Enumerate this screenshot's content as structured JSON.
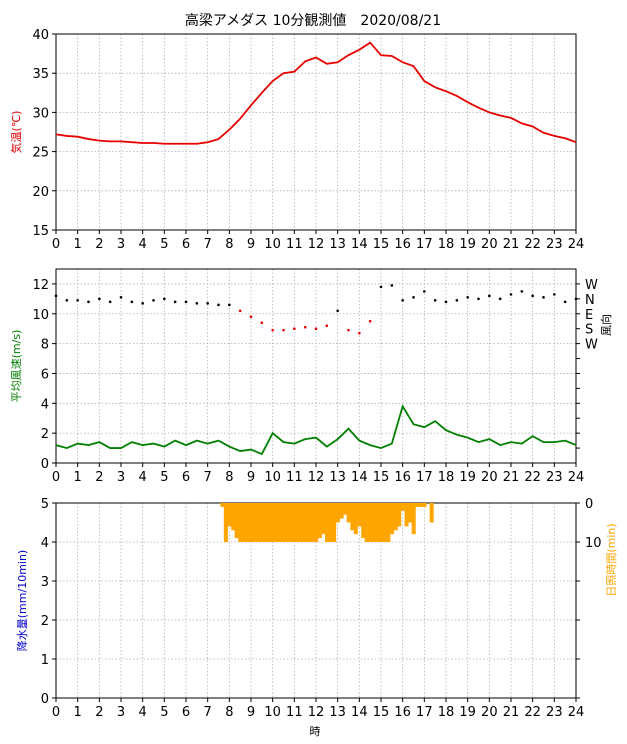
{
  "title": "高梁アメダス 10分観測値　2020/08/21",
  "xlabel": "時",
  "colors": {
    "temperature": "#e60000",
    "wind_speed": "#007f00",
    "wind_dir_normal": "#000000",
    "wind_dir_red": "#e60000",
    "precip_label": "#0000cc",
    "sunshine": "#ffa500",
    "grid": "#b0b0b0"
  },
  "chart_data": [
    {
      "type": "line",
      "name": "temperature-panel",
      "ylabel": "気温(℃)",
      "xlim": [
        0,
        24
      ],
      "ylim": [
        15,
        40
      ],
      "xticks": [
        0,
        1,
        2,
        3,
        4,
        5,
        6,
        7,
        8,
        9,
        10,
        11,
        12,
        13,
        14,
        15,
        16,
        17,
        18,
        19,
        20,
        21,
        22,
        23,
        24
      ],
      "yticks": [
        15,
        20,
        25,
        30,
        35,
        40
      ],
      "grid": true,
      "series": [
        {
          "x": [
            0,
            0.5,
            1,
            1.5,
            2,
            2.5,
            3,
            3.5,
            4,
            4.5,
            5,
            5.5,
            6,
            6.5,
            7,
            7.5,
            8,
            8.5,
            9,
            9.5,
            10,
            10.5,
            11,
            11.5,
            12,
            12.5,
            13,
            13.5,
            14,
            14.5,
            15,
            15.5,
            16,
            16.5,
            17,
            17.5,
            18,
            18.5,
            19,
            19.5,
            20,
            20.5,
            21,
            21.5,
            22,
            22.5,
            23,
            23.5,
            24
          ],
          "values": [
            27.2,
            27.0,
            26.9,
            26.6,
            26.4,
            26.3,
            26.3,
            26.2,
            26.1,
            26.1,
            26.0,
            26.0,
            26.0,
            26.0,
            26.2,
            26.6,
            27.8,
            29.2,
            30.9,
            32.5,
            34.0,
            35.0,
            35.2,
            36.5,
            37.0,
            36.2,
            36.4,
            37.3,
            38.0,
            38.9,
            37.3,
            37.2,
            36.4,
            35.9,
            34.0,
            33.2,
            32.7,
            32.1,
            31.3,
            30.6,
            30.0,
            29.6,
            29.3,
            28.6,
            28.2,
            27.4,
            27.0,
            26.7,
            26.2
          ]
        }
      ]
    },
    {
      "type": "line",
      "name": "wind-panel",
      "ylabel": "平均風速(m/s)",
      "y2label": "風向",
      "xlim": [
        0,
        24
      ],
      "ylim": [
        0,
        13
      ],
      "xticks": [
        0,
        1,
        2,
        3,
        4,
        5,
        6,
        7,
        8,
        9,
        10,
        11,
        12,
        13,
        14,
        15,
        16,
        17,
        18,
        19,
        20,
        21,
        22,
        23,
        24
      ],
      "yticks": [
        0,
        2,
        4,
        6,
        8,
        10,
        12
      ],
      "y2ticks": [
        "W",
        "N",
        "E",
        "S",
        "W"
      ],
      "grid": true,
      "series": [
        {
          "name": "wind-speed",
          "x": [
            0,
            0.5,
            1,
            1.5,
            2,
            2.5,
            3,
            3.5,
            4,
            4.5,
            5,
            5.5,
            6,
            6.5,
            7,
            7.5,
            8,
            8.5,
            9,
            9.5,
            10,
            10.5,
            11,
            11.5,
            12,
            12.5,
            13,
            13.5,
            14,
            14.5,
            15,
            15.5,
            16,
            16.5,
            17,
            17.5,
            18,
            18.5,
            19,
            19.5,
            20,
            20.5,
            21,
            21.5,
            22,
            22.5,
            23,
            23.5,
            24
          ],
          "values": [
            1.2,
            1.0,
            1.3,
            1.2,
            1.4,
            1.0,
            1.0,
            1.4,
            1.2,
            1.3,
            1.1,
            1.5,
            1.2,
            1.5,
            1.3,
            1.5,
            1.1,
            0.8,
            0.9,
            0.6,
            2.0,
            1.4,
            1.3,
            1.6,
            1.7,
            1.1,
            1.6,
            2.3,
            1.5,
            1.2,
            1.0,
            1.3,
            3.8,
            2.6,
            2.4,
            2.8,
            2.2,
            1.9,
            1.7,
            1.4,
            1.6,
            1.2,
            1.4,
            1.3,
            1.8,
            1.4,
            1.4,
            1.5,
            1.2
          ]
        },
        {
          "name": "wind-direction-dots",
          "x": [
            0,
            0.5,
            1,
            1.5,
            2,
            2.5,
            3,
            3.5,
            4,
            4.5,
            5,
            5.5,
            6,
            6.5,
            7,
            7.5,
            8,
            8.5,
            9,
            9.5,
            10,
            10.5,
            11,
            11.5,
            12,
            12.5,
            13,
            13.5,
            14,
            14.5,
            15,
            15.5,
            16,
            16.5,
            17,
            17.5,
            18,
            18.5,
            19,
            19.5,
            20,
            20.5,
            21,
            21.5,
            22,
            22.5,
            23,
            23.5,
            24
          ],
          "values": [
            11.2,
            10.9,
            10.9,
            10.8,
            11.0,
            10.8,
            11.1,
            10.8,
            10.7,
            10.9,
            11.0,
            10.8,
            10.8,
            10.7,
            10.7,
            10.6,
            10.6,
            10.2,
            9.8,
            9.4,
            8.9,
            8.9,
            9.0,
            9.1,
            9.0,
            9.2,
            10.2,
            8.9,
            8.7,
            9.5,
            11.8,
            11.9,
            10.9,
            11.1,
            11.5,
            10.9,
            10.8,
            10.9,
            11.1,
            11.0,
            11.2,
            11.0,
            11.3,
            11.5,
            11.2,
            11.1,
            11.3,
            10.8,
            11.0
          ],
          "red": [
            false,
            false,
            false,
            false,
            false,
            false,
            false,
            false,
            false,
            false,
            false,
            false,
            false,
            false,
            false,
            false,
            false,
            true,
            true,
            true,
            true,
            true,
            true,
            true,
            true,
            true,
            false,
            true,
            true,
            true,
            false,
            false,
            false,
            false,
            false,
            false,
            false,
            false,
            false,
            false,
            false,
            false,
            false,
            false,
            false,
            false,
            false,
            false,
            false
          ]
        }
      ]
    },
    {
      "type": "bar",
      "name": "precip-sunshine-panel",
      "ylabel": "降水量(mm/10min)",
      "y2label": "日照時間(min)",
      "xlim": [
        0,
        24
      ],
      "ylim": [
        0,
        5
      ],
      "xticks": [
        0,
        1,
        2,
        3,
        4,
        5,
        6,
        7,
        8,
        9,
        10,
        11,
        12,
        13,
        14,
        15,
        16,
        17,
        18,
        19,
        20,
        21,
        22,
        23,
        24
      ],
      "yticks": [
        0,
        1,
        2,
        3,
        4,
        5
      ],
      "y2ticks": [
        "0",
        "10"
      ],
      "grid": true,
      "series": [
        {
          "name": "sunshine-minutes",
          "x": [
            7.67,
            7.83,
            8.0,
            8.17,
            8.33,
            8.5,
            8.67,
            8.83,
            9.0,
            9.17,
            9.33,
            9.5,
            9.67,
            9.83,
            10.0,
            10.17,
            10.33,
            10.5,
            10.67,
            10.83,
            11.0,
            11.17,
            11.33,
            11.5,
            11.67,
            11.83,
            12.0,
            12.17,
            12.33,
            12.5,
            12.67,
            12.83,
            13.0,
            13.17,
            13.33,
            13.5,
            13.67,
            13.83,
            14.0,
            14.17,
            14.33,
            14.5,
            14.67,
            14.83,
            15.0,
            15.17,
            15.33,
            15.5,
            15.67,
            15.83,
            16.0,
            16.17,
            16.33,
            16.5,
            16.67,
            16.83,
            17.0,
            17.17,
            17.33
          ],
          "values": [
            1,
            10,
            6,
            7,
            9,
            10,
            10,
            10,
            10,
            10,
            10,
            10,
            10,
            10,
            10,
            10,
            10,
            10,
            10,
            10,
            10,
            10,
            10,
            10,
            10,
            10,
            10,
            9,
            8,
            10,
            10,
            10,
            5,
            4,
            3,
            5,
            7,
            8,
            6,
            9,
            10,
            10,
            10,
            10,
            10,
            10,
            10,
            8,
            7,
            6,
            2,
            6,
            5,
            8,
            1,
            1,
            1,
            0,
            5
          ]
        }
      ]
    }
  ]
}
